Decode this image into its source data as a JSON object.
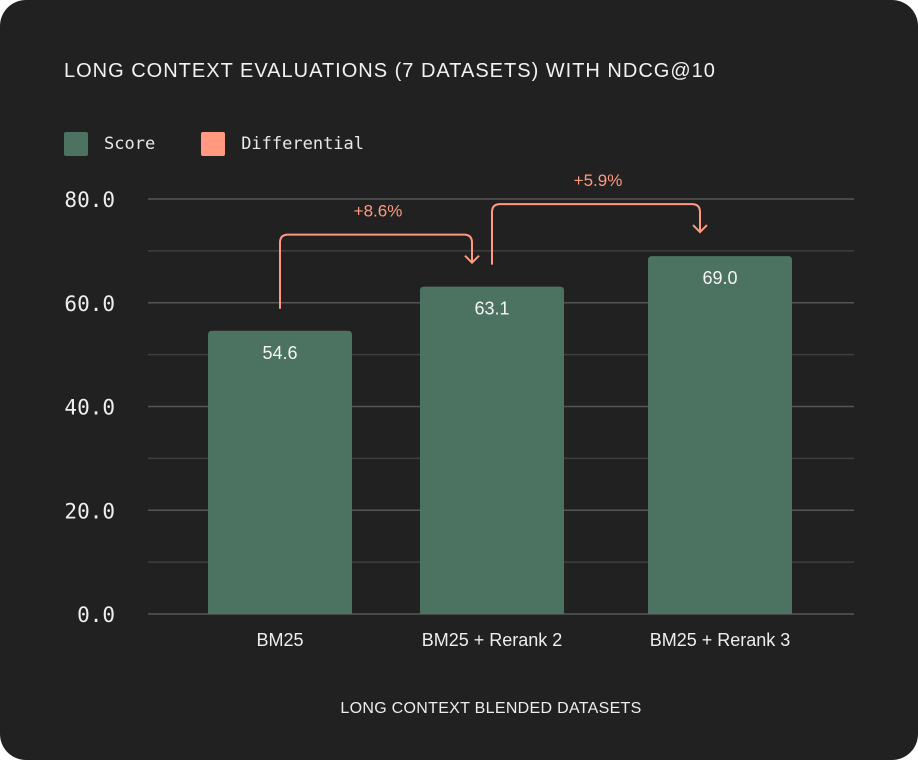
{
  "chart_data": {
    "type": "bar",
    "title": "LONG CONTEXT EVALUATIONS (7 DATASETS) WITH NDCG@10",
    "xlabel": "LONG CONTEXT BLENDED DATASETS",
    "ylabel": "",
    "categories": [
      "BM25",
      "BM25 + Rerank 2",
      "BM25 + Rerank 3"
    ],
    "series": [
      {
        "name": "Score",
        "values": [
          54.6,
          63.1,
          69.0
        ],
        "value_labels": [
          "54.6",
          "63.1",
          "69.0"
        ]
      }
    ],
    "differentials": [
      {
        "from": 0,
        "to": 1,
        "label": "+8.6%"
      },
      {
        "from": 1,
        "to": 2,
        "label": "+5.9%"
      }
    ],
    "legend": [
      {
        "name": "Score",
        "color": "#4c7262"
      },
      {
        "name": "Differential",
        "color": "#ff9a80"
      }
    ],
    "legend_position": "top-left",
    "ylim": [
      0,
      80
    ],
    "yticks": [
      "0.0",
      "20.0",
      "40.0",
      "60.0",
      "80.0"
    ],
    "ytick_values": [
      0,
      20,
      40,
      60,
      80
    ],
    "minor_gridlines": [
      10,
      30,
      50,
      70
    ],
    "grid": true
  },
  "colors": {
    "background": "#212121",
    "bar": "#4c7262",
    "differential": "#ff9a80",
    "grid": "#555555",
    "text": "#eeeeee"
  }
}
